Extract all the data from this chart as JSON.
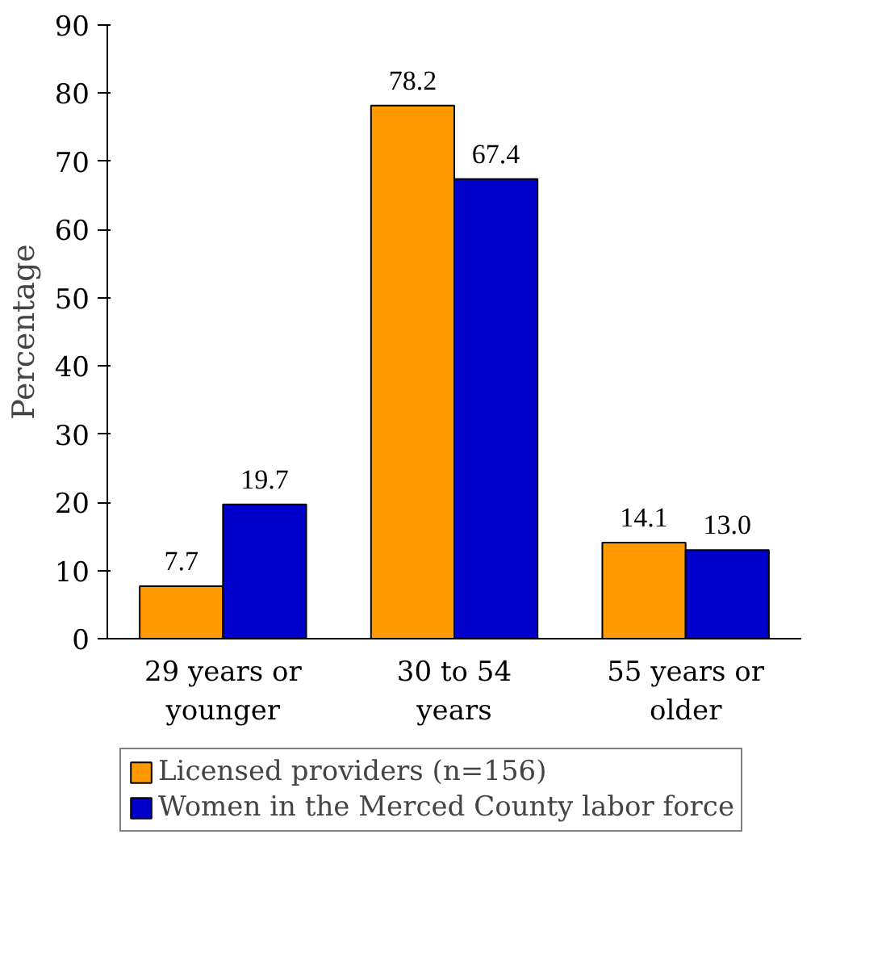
{
  "chart_data": {
    "type": "bar",
    "ylabel": "Percentage",
    "categories": [
      "29 years or younger",
      "30 to 54 years",
      "55 years or older"
    ],
    "series": [
      {
        "name": "Licensed providers (n=156)",
        "color": "#ff9900",
        "values": [
          7.7,
          78.2,
          14.1
        ],
        "value_labels": [
          "7.7",
          "78.2",
          "14.1"
        ]
      },
      {
        "name": "Women in the Merced County labor force",
        "color": "#0000cc",
        "values": [
          19.7,
          67.4,
          13.0
        ],
        "value_labels": [
          "19.7",
          "67.4",
          "13.0"
        ]
      }
    ],
    "ylim": [
      0,
      90
    ],
    "data_labels": true,
    "yticks": [
      0,
      10,
      20,
      30,
      40,
      50,
      60,
      70,
      80,
      90
    ],
    "grid": false,
    "legend": "bottom"
  }
}
